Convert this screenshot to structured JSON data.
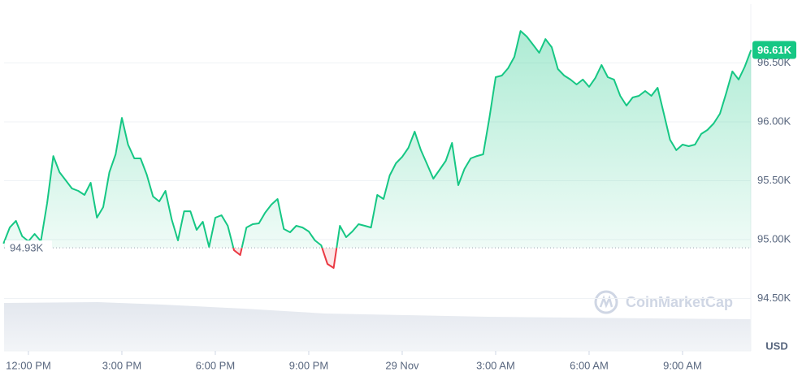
{
  "chart_data": {
    "type": "line",
    "x": [
      -0.8,
      -0.6,
      -0.4,
      -0.2,
      0,
      0.2,
      0.4,
      0.6,
      0.8,
      1,
      1.2,
      1.4,
      1.6,
      1.8,
      2,
      2.2,
      2.4,
      2.6,
      2.8,
      3,
      3.2,
      3.4,
      3.6,
      3.8,
      4,
      4.2,
      4.4,
      4.6,
      4.8,
      5,
      5.2,
      5.4,
      5.6,
      5.8,
      6,
      6.2,
      6.4,
      6.6,
      6.8,
      7,
      7.2,
      7.4,
      7.6,
      7.8,
      8,
      8.2,
      8.4,
      8.6,
      8.8,
      9,
      9.2,
      9.4,
      9.6,
      9.8,
      10,
      10.2,
      10.4,
      10.6,
      10.8,
      11,
      11.2,
      11.4,
      11.6,
      11.8,
      12,
      12.2,
      12.4,
      12.6,
      12.8,
      13,
      13.2,
      13.4,
      13.6,
      13.8,
      14,
      14.2,
      14.4,
      14.6,
      14.8,
      15,
      15.2,
      15.4,
      15.6,
      15.8,
      16,
      16.2,
      16.4,
      16.6,
      16.8,
      17,
      17.2,
      17.4,
      17.6,
      17.8,
      18,
      18.2,
      18.4,
      18.6,
      18.8,
      19,
      19.2,
      19.4,
      19.6,
      19.8,
      20,
      20.2,
      20.4,
      20.6,
      20.8,
      21,
      21.2,
      21.4,
      21.6,
      21.8,
      22,
      22.2,
      22.4,
      22.6,
      22.8,
      23,
      23.2
    ],
    "values": [
      94966,
      95103,
      95159,
      95028,
      94986,
      95048,
      94986,
      95310,
      95710,
      95572,
      95503,
      95434,
      95414,
      95379,
      95483,
      95186,
      95276,
      95572,
      95724,
      96034,
      95807,
      95690,
      95690,
      95552,
      95366,
      95324,
      95414,
      95172,
      94993,
      95241,
      95241,
      95083,
      95152,
      94938,
      95186,
      95207,
      95117,
      94910,
      94869,
      95103,
      95131,
      95138,
      95228,
      95297,
      95345,
      95090,
      95062,
      95117,
      95103,
      95069,
      94993,
      94952,
      94793,
      94759,
      95117,
      95021,
      95069,
      95131,
      95117,
      95103,
      95379,
      95345,
      95545,
      95648,
      95703,
      95779,
      95917,
      95759,
      95641,
      95517,
      95593,
      95669,
      95821,
      95462,
      95600,
      95690,
      95710,
      95724,
      96034,
      96379,
      96393,
      96455,
      96552,
      96772,
      96724,
      96655,
      96586,
      96703,
      96634,
      96448,
      96393,
      96359,
      96317,
      96359,
      96297,
      96372,
      96483,
      96379,
      96359,
      96221,
      96138,
      96207,
      96221,
      96262,
      96221,
      96290,
      96069,
      95848,
      95759,
      95807,
      95793,
      95807,
      95897,
      95931,
      95986,
      96069,
      96241,
      96428,
      96359,
      96469,
      96610
    ],
    "color": "#16c784",
    "down_color": "#ea3943",
    "xlim": [
      -0.8,
      23.2
    ],
    "xticks": [
      {
        "value": 0,
        "label": "12:00 PM"
      },
      {
        "value": 3,
        "label": "3:00 PM"
      },
      {
        "value": 6,
        "label": "6:00 PM"
      },
      {
        "value": 9,
        "label": "9:00 PM"
      },
      {
        "value": 12,
        "label": "29 Nov"
      },
      {
        "value": 15,
        "label": "3:00 AM"
      },
      {
        "value": 18,
        "label": "6:00 AM"
      },
      {
        "value": 21,
        "label": "9:00 AM"
      }
    ],
    "ylim": [
      94100,
      97000
    ],
    "yticks": [
      {
        "value": 94500,
        "label": "94.50K"
      },
      {
        "value": 95000,
        "label": "95.00K"
      },
      {
        "value": 95500,
        "label": "95.50K"
      },
      {
        "value": 96000,
        "label": "96.00K"
      },
      {
        "value": 96500,
        "label": "96.50K"
      }
    ],
    "reference": {
      "value": 94930,
      "label": "94.93K"
    },
    "current": {
      "value": 96610,
      "label": "96.61K"
    },
    "currency": "USD",
    "watermark": "CoinMarketCap",
    "grid": true
  }
}
